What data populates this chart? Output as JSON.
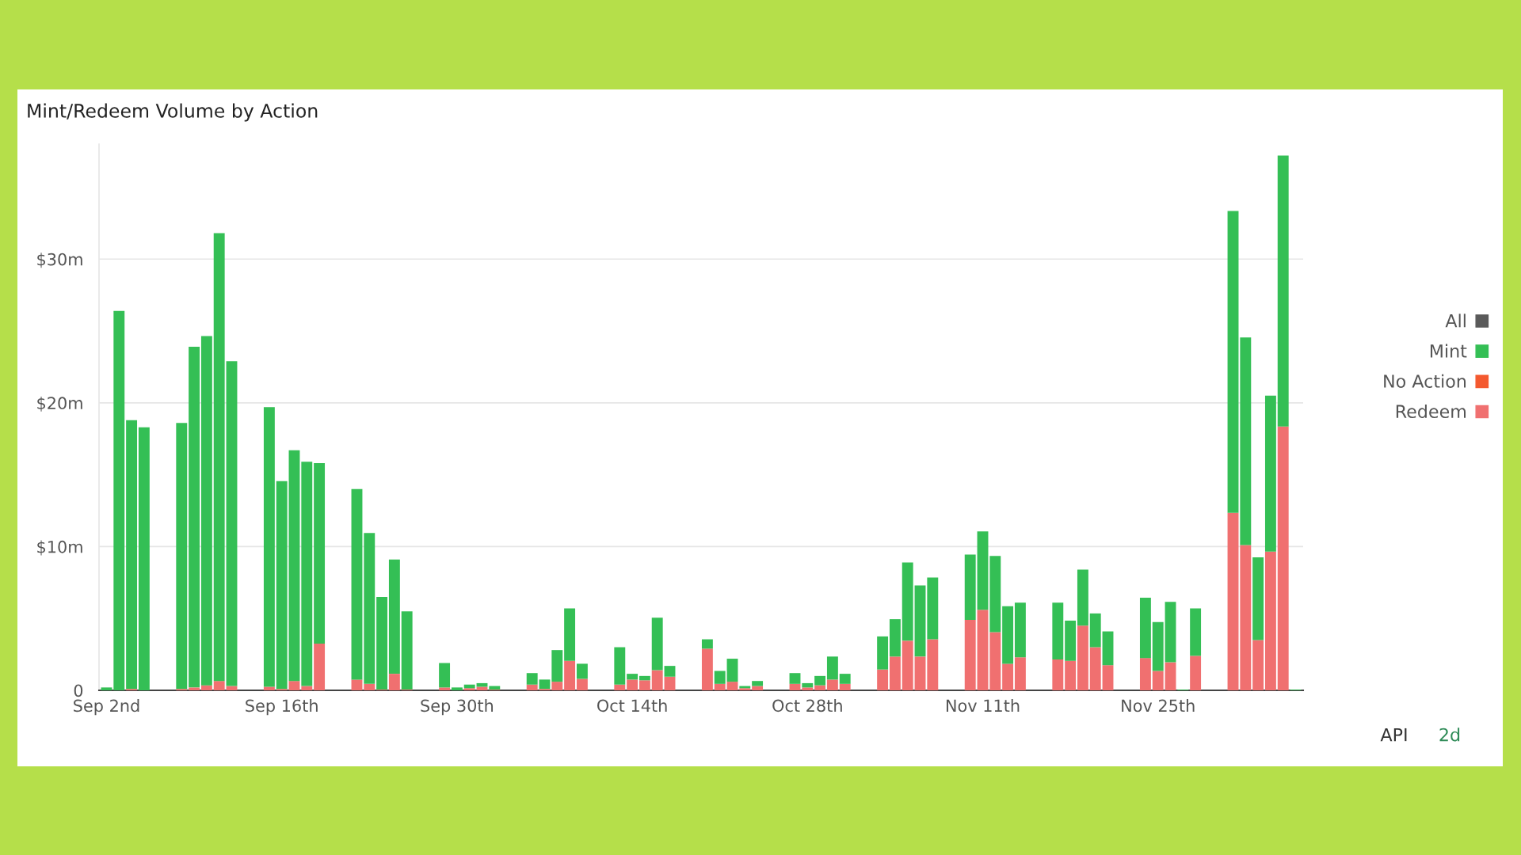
{
  "chart_data": {
    "type": "bar",
    "title": "Mint/Redeem Volume by Action",
    "stacked": true,
    "grid": "y",
    "legend": "right",
    "categories": [
      "Sep 2nd",
      null,
      null,
      null,
      null,
      null,
      null,
      null,
      null,
      null,
      null,
      null,
      null,
      null,
      "Sep 16th",
      null,
      null,
      null,
      null,
      null,
      null,
      null,
      null,
      null,
      null,
      null,
      null,
      null,
      "Sep 30th",
      null,
      null,
      null,
      null,
      null,
      null,
      null,
      null,
      null,
      null,
      null,
      null,
      null,
      "Oct 14th",
      null,
      null,
      null,
      null,
      null,
      null,
      null,
      null,
      null,
      null,
      null,
      null,
      null,
      "Oct 28th",
      null,
      null,
      null,
      null,
      null,
      null,
      null,
      null,
      null,
      null,
      null,
      null,
      null,
      "Nov 11th",
      null,
      null,
      null,
      null,
      null,
      null,
      null,
      null,
      null,
      null,
      null,
      null,
      null,
      "Nov 25th",
      null,
      null,
      null,
      null,
      null,
      null,
      null,
      null,
      null,
      null,
      null
    ],
    "ylim": [
      0,
      38
    ],
    "yticks": [
      {
        "value": 0,
        "label": "0"
      },
      {
        "value": 10,
        "label": "$10m"
      },
      {
        "value": 20,
        "label": "$20m"
      },
      {
        "value": 30,
        "label": "$30m"
      }
    ],
    "series": [
      {
        "name": "Redeem",
        "color": "#f07070",
        "values": [
          null,
          null,
          0.1,
          null,
          null,
          null,
          0.1,
          0.2,
          0.35,
          0.65,
          0.3,
          null,
          null,
          0.25,
          0.1,
          0.65,
          0.3,
          3.25,
          null,
          null,
          0.75,
          0.45,
          0.05,
          1.15,
          0.05,
          null,
          null,
          0.2,
          null,
          0.15,
          0.25,
          0.05,
          null,
          null,
          0.4,
          0.1,
          0.6,
          2.05,
          0.8,
          null,
          null,
          0.4,
          0.75,
          0.7,
          1.4,
          0.95,
          null,
          null,
          2.9,
          0.45,
          0.6,
          0.15,
          0.3,
          null,
          null,
          0.45,
          0.2,
          0.35,
          0.75,
          0.45,
          null,
          null,
          1.45,
          2.35,
          3.45,
          2.35,
          3.55,
          null,
          null,
          4.9,
          5.6,
          4.05,
          1.85,
          2.3,
          null,
          null,
          2.15,
          2.05,
          4.5,
          3.0,
          1.75,
          null,
          null,
          2.25,
          1.35,
          1.95,
          null,
          2.4,
          null,
          null,
          12.35,
          10.1,
          3.5,
          9.65,
          18.35,
          null
        ]
      },
      {
        "name": "No Action",
        "color": "#f4592f",
        "values": [
          null,
          null,
          null,
          null,
          null,
          null,
          null,
          null,
          null,
          null,
          null,
          null,
          null,
          null,
          null,
          null,
          null,
          null,
          null,
          null,
          null,
          null,
          null,
          null,
          null,
          null,
          null,
          null,
          null,
          null,
          null,
          null,
          null,
          null,
          null,
          null,
          null,
          null,
          null,
          null,
          null,
          null,
          null,
          null,
          null,
          null,
          null,
          null,
          null,
          null,
          null,
          null,
          null,
          null,
          null,
          null,
          null,
          null,
          null,
          null,
          null,
          null,
          null,
          null,
          null,
          null,
          null,
          null,
          null,
          null,
          null,
          null,
          null,
          null,
          null,
          null,
          null,
          null,
          null,
          null,
          null,
          null,
          null,
          null,
          null,
          null,
          null,
          null,
          null,
          null,
          null,
          null,
          null,
          null,
          null,
          null
        ]
      },
      {
        "name": "Mint",
        "color": "#34bf55",
        "values": [
          0.2,
          26.4,
          18.7,
          18.3,
          null,
          null,
          18.5,
          23.7,
          24.3,
          31.15,
          22.6,
          null,
          null,
          19.45,
          14.45,
          16.05,
          15.6,
          12.55,
          null,
          null,
          13.25,
          10.5,
          6.45,
          7.95,
          5.45,
          null,
          null,
          1.7,
          0.2,
          0.25,
          0.25,
          0.25,
          null,
          null,
          0.8,
          0.65,
          2.2,
          3.65,
          1.05,
          null,
          null,
          2.6,
          0.4,
          0.3,
          3.65,
          0.75,
          null,
          null,
          0.65,
          0.9,
          1.6,
          0.15,
          0.35,
          null,
          null,
          0.75,
          0.3,
          0.65,
          1.6,
          0.7,
          null,
          null,
          2.3,
          2.6,
          5.45,
          4.95,
          4.3,
          null,
          null,
          4.55,
          5.45,
          5.3,
          4.0,
          3.8,
          null,
          null,
          3.95,
          2.8,
          3.9,
          2.35,
          2.35,
          null,
          null,
          4.2,
          3.4,
          4.2,
          0.05,
          3.3,
          null,
          null,
          21.0,
          14.45,
          5.75,
          10.85,
          18.85,
          0.05
        ]
      },
      {
        "name": "All",
        "color": "#5a5a5a",
        "values": [
          null,
          null,
          null,
          null,
          null,
          null,
          null,
          null,
          null,
          null,
          null,
          null,
          null,
          null,
          null,
          null,
          null,
          null,
          null,
          null,
          null,
          null,
          null,
          null,
          null,
          null,
          null,
          null,
          null,
          null,
          null,
          null,
          null,
          null,
          null,
          null,
          null,
          null,
          null,
          null,
          null,
          null,
          null,
          null,
          null,
          null,
          null,
          null,
          null,
          null,
          null,
          null,
          null,
          null,
          null,
          null,
          null,
          null,
          null,
          null,
          null,
          null,
          null,
          null,
          null,
          null,
          null,
          null,
          null,
          null,
          null,
          null,
          null,
          null,
          null,
          null,
          null,
          null,
          null,
          null,
          null,
          null,
          null,
          null,
          null,
          null,
          null,
          null,
          null,
          null,
          null,
          null,
          null,
          null,
          null,
          null
        ]
      }
    ],
    "annotations": [
      "API",
      "2d"
    ]
  }
}
